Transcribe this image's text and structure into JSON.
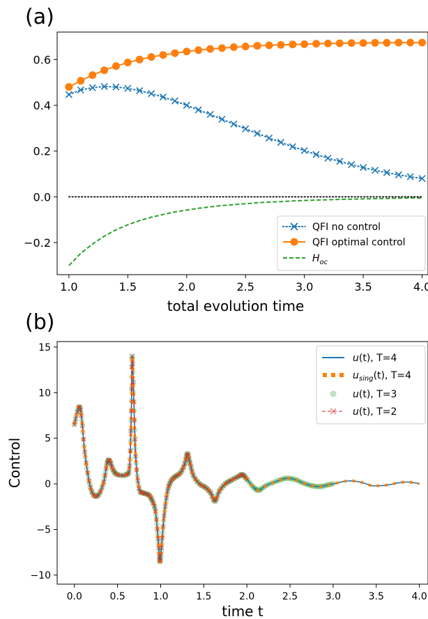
{
  "chart_data": [
    {
      "panel": "(a)",
      "type": "line",
      "xlabel": "total evolution time",
      "ylabel": "",
      "xlim": [
        0.9,
        4.05
      ],
      "ylim": [
        -0.34,
        0.72
      ],
      "xticks": [
        "1.0",
        "1.5",
        "2.0",
        "2.5",
        "3.0",
        "3.5",
        "4.0"
      ],
      "yticks": [
        "−0.2",
        "0.0",
        "0.2",
        "0.4",
        "0.6"
      ],
      "legend_position": "bottom-right",
      "grid": false,
      "x": [
        1.0,
        1.1,
        1.2,
        1.3,
        1.4,
        1.5,
        1.6,
        1.7,
        1.8,
        1.9,
        2.0,
        2.1,
        2.2,
        2.3,
        2.4,
        2.5,
        2.6,
        2.7,
        2.8,
        2.9,
        3.0,
        3.1,
        3.2,
        3.3,
        3.4,
        3.5,
        3.6,
        3.7,
        3.8,
        3.9,
        4.0
      ],
      "series": [
        {
          "name": "QFI no control",
          "style": "dotted-x",
          "color": "#1f77b4",
          "values": [
            0.447,
            0.467,
            0.477,
            0.482,
            0.48,
            0.474,
            0.464,
            0.451,
            0.436,
            0.419,
            0.4,
            0.38,
            0.36,
            0.339,
            0.318,
            0.297,
            0.277,
            0.257,
            0.238,
            0.219,
            0.202,
            0.185,
            0.169,
            0.155,
            0.141,
            0.128,
            0.116,
            0.106,
            0.096,
            0.088,
            0.08
          ]
        },
        {
          "name": "QFI optimal control",
          "style": "solid-circle",
          "color": "#ff7f0e",
          "values": [
            0.48,
            0.507,
            0.532,
            0.553,
            0.571,
            0.587,
            0.6,
            0.611,
            0.62,
            0.628,
            0.635,
            0.641,
            0.646,
            0.65,
            0.654,
            0.657,
            0.66,
            0.662,
            0.664,
            0.666,
            0.667,
            0.669,
            0.67,
            0.671,
            0.672,
            0.672,
            0.673,
            0.673,
            0.674,
            0.674,
            0.674
          ]
        },
        {
          "name": "H_oc",
          "style": "dashed",
          "color": "#2ca02c",
          "values": [
            -0.3,
            -0.247,
            -0.206,
            -0.172,
            -0.144,
            -0.122,
            -0.104,
            -0.089,
            -0.077,
            -0.066,
            -0.058,
            -0.05,
            -0.044,
            -0.038,
            -0.034,
            -0.03,
            -0.026,
            -0.023,
            -0.021,
            -0.018,
            -0.016,
            -0.014,
            -0.013,
            -0.011,
            -0.01,
            -0.009,
            -0.008,
            -0.007,
            -0.006,
            -0.005,
            -0.005
          ]
        },
        {
          "name": "",
          "style": "dotted-black",
          "color": "#000000",
          "values": [
            0,
            0,
            0,
            0,
            0,
            0,
            0,
            0,
            0,
            0,
            0,
            0,
            0,
            0,
            0,
            0,
            0,
            0,
            0,
            0,
            0,
            0,
            0,
            0,
            0,
            0,
            0,
            0,
            0,
            0,
            0
          ]
        }
      ]
    },
    {
      "panel": "(b)",
      "type": "line",
      "xlabel": "time t",
      "ylabel": "Control",
      "xlim": [
        -0.2,
        4.1
      ],
      "ylim": [
        -11.0,
        15.6
      ],
      "xticks": [
        "0.0",
        "0.5",
        "1.0",
        "1.5",
        "2.0",
        "2.5",
        "3.0",
        "3.5",
        "4.0"
      ],
      "yticks": [
        "−10",
        "−5",
        "0",
        "5",
        "10",
        "15"
      ],
      "legend_position": "top-right",
      "grid": false,
      "control_points": [
        [
          0.0,
          6.5
        ],
        [
          0.05,
          8.4
        ],
        [
          0.08,
          7.5
        ],
        [
          0.12,
          3.5
        ],
        [
          0.17,
          0.3
        ],
        [
          0.22,
          -1.2
        ],
        [
          0.28,
          -1.2
        ],
        [
          0.34,
          0.2
        ],
        [
          0.38,
          2.3
        ],
        [
          0.41,
          2.5
        ],
        [
          0.45,
          1.5
        ],
        [
          0.5,
          1.0
        ],
        [
          0.6,
          1.0
        ],
        [
          0.64,
          2.0
        ],
        [
          0.66,
          8.0
        ],
        [
          0.67,
          14.0
        ],
        [
          0.69,
          9.0
        ],
        [
          0.71,
          3.0
        ],
        [
          0.75,
          -0.5
        ],
        [
          0.8,
          -1.0
        ],
        [
          0.86,
          -1.2
        ],
        [
          0.9,
          -1.8
        ],
        [
          0.94,
          -3.0
        ],
        [
          0.97,
          -6.0
        ],
        [
          0.99,
          -8.5
        ],
        [
          1.01,
          -7.0
        ],
        [
          1.04,
          -3.5
        ],
        [
          1.08,
          -0.8
        ],
        [
          1.12,
          0.3
        ],
        [
          1.17,
          0.8
        ],
        [
          1.23,
          1.2
        ],
        [
          1.28,
          2.2
        ],
        [
          1.31,
          3.3
        ],
        [
          1.34,
          2.3
        ],
        [
          1.38,
          0.9
        ],
        [
          1.45,
          0.0
        ],
        [
          1.52,
          -0.4
        ],
        [
          1.58,
          -1.0
        ],
        [
          1.63,
          -1.9
        ],
        [
          1.68,
          -0.8
        ],
        [
          1.75,
          0.0
        ],
        [
          1.82,
          0.4
        ],
        [
          1.9,
          0.8
        ],
        [
          1.95,
          1.0
        ],
        [
          2.0,
          0.5
        ],
        [
          2.08,
          -0.4
        ],
        [
          2.14,
          -0.7
        ],
        [
          2.22,
          -0.2
        ],
        [
          2.35,
          0.3
        ],
        [
          2.45,
          0.6
        ],
        [
          2.55,
          0.5
        ],
        [
          2.65,
          0.1
        ],
        [
          2.75,
          -0.2
        ],
        [
          2.85,
          -0.3
        ],
        [
          2.95,
          -0.1
        ],
        [
          3.05,
          0.1
        ],
        [
          3.15,
          0.3
        ],
        [
          3.25,
          0.3
        ],
        [
          3.35,
          0.1
        ],
        [
          3.45,
          -0.2
        ],
        [
          3.55,
          -0.2
        ],
        [
          3.65,
          -0.1
        ],
        [
          3.75,
          0.1
        ],
        [
          3.85,
          0.2
        ],
        [
          3.95,
          0.1
        ],
        [
          4.0,
          0.0
        ]
      ],
      "series": [
        {
          "name": "u(t), T=4",
          "style": "solid",
          "color": "#1f77b4",
          "x_range": [
            0,
            4
          ]
        },
        {
          "name": "u_sing(t), T=4",
          "style": "dotted-square",
          "color": "#ff7f0e",
          "x_range": [
            0,
            4
          ]
        },
        {
          "name": "u(t), T=3",
          "style": "circle-markers",
          "color": "#2ca02c",
          "x_range": [
            0,
            3
          ]
        },
        {
          "name": "u(t), T=2",
          "style": "dashed-x",
          "color": "#d62728",
          "x_range": [
            0,
            2
          ]
        }
      ]
    }
  ],
  "legend_a": {
    "item1": "QFI no control",
    "item2": "QFI optimal control",
    "item3_main": "H",
    "item3_sub": "oc"
  },
  "legend_b": {
    "item1": {
      "u": "u",
      "arg": "(t), T=4"
    },
    "item2": {
      "u": "u",
      "sub": "sing",
      "arg": "(t), T=4"
    },
    "item3": {
      "u": "u",
      "arg": "(t), T=3"
    },
    "item4": {
      "u": "u",
      "arg": "(t), T=2"
    }
  }
}
